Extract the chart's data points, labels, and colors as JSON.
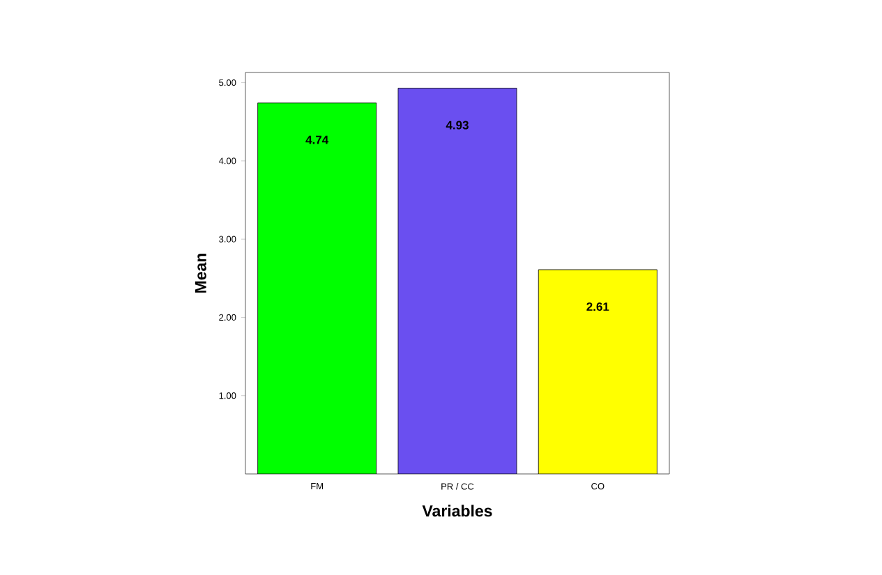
{
  "chart_data": {
    "type": "bar",
    "xlabel": "Variables",
    "ylabel": "Mean",
    "categories": [
      "FM",
      "PR / CC",
      "CO"
    ],
    "values": [
      4.74,
      4.93,
      2.61
    ],
    "colors": [
      "#00ff00",
      "#6a4ff0",
      "#ffff00"
    ],
    "value_labels": [
      "4.74",
      "4.93",
      "2.61"
    ],
    "ylim": [
      0,
      5.13
    ],
    "yticks": [
      {
        "value": 1,
        "label": "1.00"
      },
      {
        "value": 2,
        "label": "2.00"
      },
      {
        "value": 3,
        "label": "3.00"
      },
      {
        "value": 4,
        "label": "4.00"
      },
      {
        "value": 5,
        "label": "5.00"
      }
    ],
    "grid": false
  }
}
